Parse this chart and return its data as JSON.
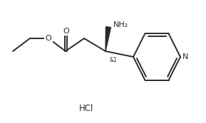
{
  "bg_color": "#ffffff",
  "line_color": "#2a2a2a",
  "line_width": 1.4,
  "font_size_label": 8.0,
  "font_size_hcl": 8.5,
  "hcl_text": "HCl",
  "nh2_text": "NH₂",
  "o_text": "O",
  "n_text": "N",
  "and1_text": "&1"
}
